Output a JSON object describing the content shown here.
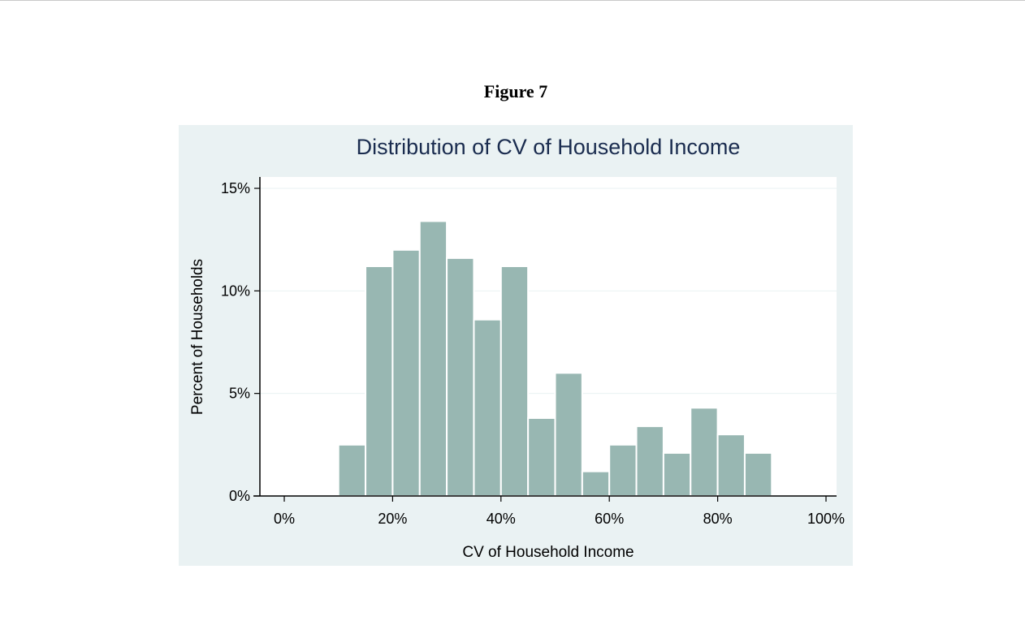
{
  "figure": {
    "caption": "Figure 7"
  },
  "chart_data": {
    "type": "bar",
    "title": "Distribution of CV of Household Income",
    "xlabel": "CV of Household Income",
    "ylabel": "Percent of Households",
    "xlim": [
      -5,
      100
    ],
    "ylim": [
      0,
      15.5
    ],
    "x_ticks": [
      {
        "value": 0,
        "label": "0%"
      },
      {
        "value": 20,
        "label": "20%"
      },
      {
        "value": 40,
        "label": "40%"
      },
      {
        "value": 60,
        "label": "60%"
      },
      {
        "value": 80,
        "label": "80%"
      },
      {
        "value": 100,
        "label": "100%"
      }
    ],
    "y_ticks": [
      {
        "value": 0,
        "label": "0%"
      },
      {
        "value": 5,
        "label": "5%"
      },
      {
        "value": 10,
        "label": "10%"
      },
      {
        "value": 15,
        "label": "15%"
      }
    ],
    "grid": true,
    "bin_width": 5,
    "bins": [
      {
        "start": 10,
        "end": 15,
        "value": 2.5
      },
      {
        "start": 15,
        "end": 20,
        "value": 11.2
      },
      {
        "start": 20,
        "end": 25,
        "value": 12.0
      },
      {
        "start": 25,
        "end": 30,
        "value": 13.4
      },
      {
        "start": 30,
        "end": 35,
        "value": 11.6
      },
      {
        "start": 35,
        "end": 40,
        "value": 8.6
      },
      {
        "start": 40,
        "end": 45,
        "value": 11.2
      },
      {
        "start": 45,
        "end": 50,
        "value": 3.8
      },
      {
        "start": 50,
        "end": 55,
        "value": 6.0
      },
      {
        "start": 55,
        "end": 60,
        "value": 1.2
      },
      {
        "start": 60,
        "end": 65,
        "value": 2.5
      },
      {
        "start": 65,
        "end": 70,
        "value": 3.4
      },
      {
        "start": 70,
        "end": 75,
        "value": 2.1
      },
      {
        "start": 75,
        "end": 80,
        "value": 4.3
      },
      {
        "start": 80,
        "end": 85,
        "value": 3.0
      },
      {
        "start": 85,
        "end": 90,
        "value": 2.1
      }
    ],
    "colors": {
      "bar_fill": "#98b7b2",
      "bar_stroke": "#ffffff",
      "panel_bg": "#eaf2f3",
      "plot_bg": "#ffffff",
      "grid": "#eaf2f3",
      "title": "#1a2c4f"
    }
  }
}
